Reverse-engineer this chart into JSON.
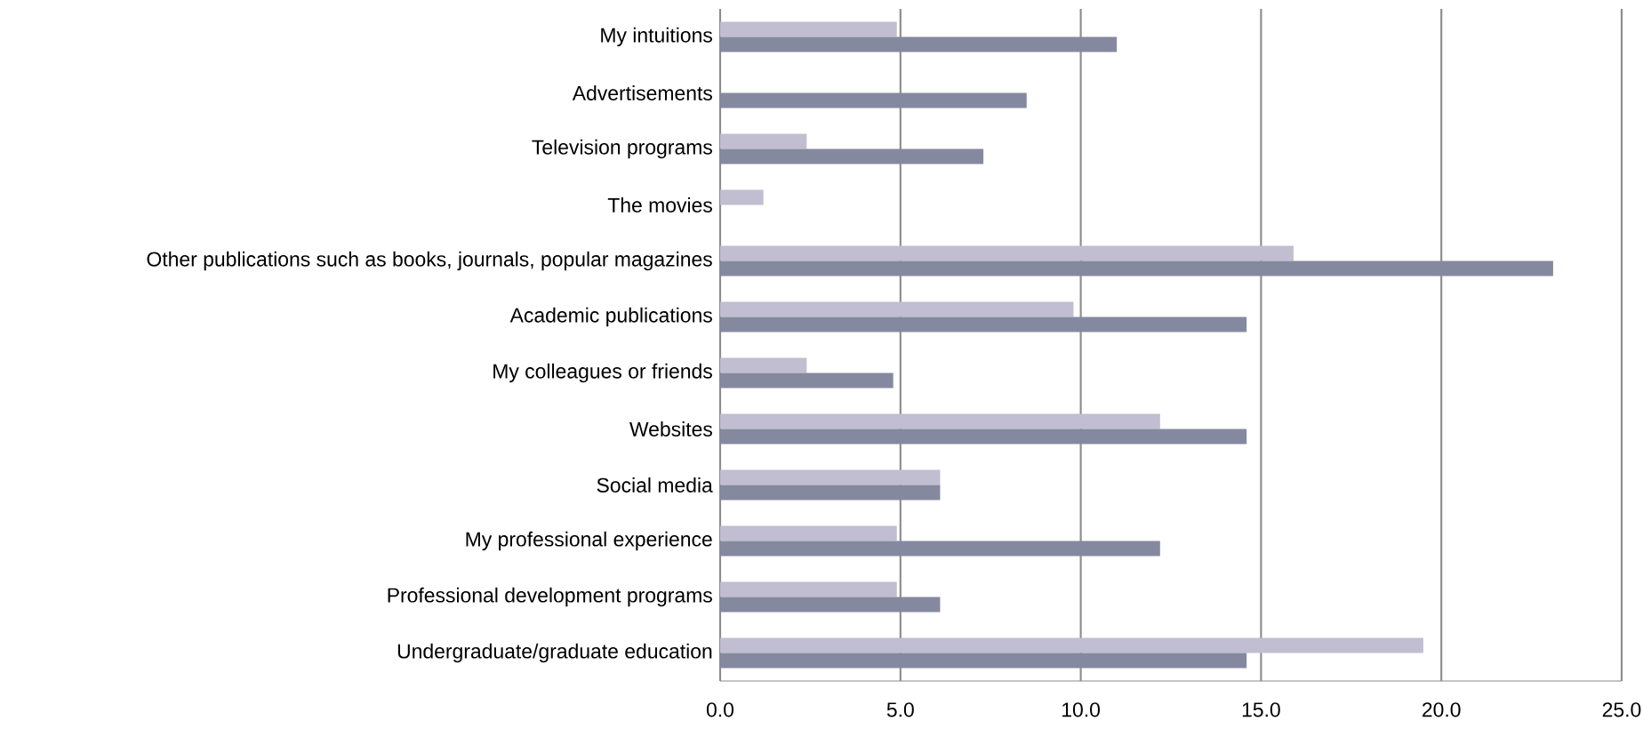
{
  "chart_data": {
    "type": "bar",
    "orientation": "horizontal",
    "categories": [
      "My intuitions",
      "Advertisements",
      "Television programs",
      "The movies",
      "Other publications  such as books, journals, popular magazines",
      "Academic publications",
      "My colleagues or friends",
      "Websites",
      "Social media",
      "My professional experience",
      "Professional development programs",
      "Undergraduate/graduate education"
    ],
    "series": [
      {
        "color": "#c0bed0",
        "values": [
          4.9,
          null,
          2.4,
          1.2,
          15.9,
          9.8,
          2.4,
          12.2,
          6.1,
          4.9,
          4.9,
          19.5
        ]
      },
      {
        "color": "#8589a0",
        "values": [
          11.0,
          8.5,
          7.3,
          null,
          23.1,
          14.6,
          4.8,
          14.6,
          6.1,
          12.2,
          6.1,
          14.6
        ]
      }
    ],
    "xlim": [
      0,
      25
    ],
    "xticks": [
      {
        "value": 0,
        "label": "0.0"
      },
      {
        "value": 5,
        "label": "5.0"
      },
      {
        "value": 10,
        "label": "10.0"
      },
      {
        "value": 15,
        "label": "15.0"
      },
      {
        "value": 20,
        "label": "20.0"
      },
      {
        "value": 25,
        "label": "25.0"
      }
    ],
    "grid": "x"
  }
}
